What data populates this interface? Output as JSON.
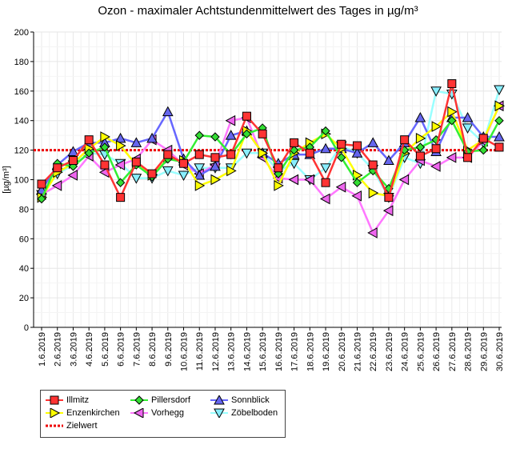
{
  "chart_data": {
    "type": "line",
    "title": "Ozon -  maximaler Achtstundenmittelwert des Tages in µg/m³",
    "xlabel": "",
    "ylabel": "[µg/m³]",
    "ylim": [
      0,
      200
    ],
    "yticks": [
      "0",
      "20",
      "40",
      "60",
      "80",
      "100",
      "120",
      "140",
      "160",
      "180",
      "200"
    ],
    "categories": [
      "1.6.2019",
      "2.6.2019",
      "3.6.2019",
      "4.6.2019",
      "5.6.2019",
      "6.6.2019",
      "7.6.2019",
      "8.6.2019",
      "9.6.2019",
      "10.6.2019",
      "11.6.2019",
      "12.6.2019",
      "13.6.2019",
      "14.6.2019",
      "15.6.2019",
      "16.6.2019",
      "17.6.2019",
      "18.6.2019",
      "19.6.2019",
      "20.6.2019",
      "21.6.2019",
      "22.6.2019",
      "23.6.2019",
      "24.6.2019",
      "25.6.2019",
      "26.6.2019",
      "27.6.2019",
      "28.6.2019",
      "29.6.2019",
      "30.6.2019"
    ],
    "grid": true,
    "legend_placement": "bottom-left",
    "series": [
      {
        "name": "Illmitz",
        "color": "#ff3333",
        "marker": "square",
        "fill": "#ff3333",
        "values": [
          97,
          108,
          113,
          127,
          110,
          88,
          112,
          104,
          117,
          111,
          117,
          115,
          117,
          143,
          131,
          108,
          125,
          118,
          98,
          124,
          123,
          110,
          88,
          127,
          116,
          121,
          165,
          115,
          128,
          122
        ]
      },
      {
        "name": "Enzenkirchen",
        "color": "#ffff00",
        "marker": "tri-right",
        "fill": "#ffff00",
        "values": [
          88,
          105,
          111,
          121,
          129,
          123,
          110,
          103,
          114,
          113,
          96,
          100,
          106,
          133,
          118,
          96,
          118,
          125,
          131,
          121,
          103,
          91,
          89,
          118,
          128,
          136,
          146,
          120,
          127,
          150
        ]
      },
      {
        "name": "Pillersdorf",
        "color": "#33ee33",
        "marker": "diamond",
        "fill": "#33dd33",
        "values": [
          87,
          111,
          109,
          118,
          122,
          98,
          110,
          102,
          114,
          112,
          130,
          129,
          117,
          131,
          135,
          104,
          120,
          122,
          133,
          115,
          98,
          106,
          94,
          120,
          122,
          127,
          140,
          119,
          120,
          140
        ]
      },
      {
        "name": "Vorhegg",
        "color": "#ff77ff",
        "marker": "tri-left",
        "fill": "#ee66ee",
        "values": [
          90,
          96,
          103,
          116,
          105,
          110,
          114,
          127,
          120,
          110,
          104,
          110,
          140,
          142,
          115,
          101,
          100,
          100,
          87,
          95,
          89,
          64,
          79,
          100,
          113,
          109,
          115,
          115,
          126,
          150
        ]
      },
      {
        "name": "Sonnblick",
        "color": "#6666ff",
        "marker": "tri-up",
        "fill": "#6666ee",
        "values": [
          93,
          110,
          119,
          125,
          125,
          128,
          125,
          128,
          146,
          114,
          103,
          109,
          130,
          133,
          118,
          111,
          117,
          117,
          121,
          121,
          118,
          125,
          113,
          125,
          142,
          119,
          142,
          142,
          129,
          129
        ]
      },
      {
        "name": "Zöbelboden",
        "color": "#99ffff",
        "marker": "tri-down",
        "fill": "#88eeff",
        "values": [
          90,
          104,
          110,
          118,
          117,
          111,
          101,
          101,
          106,
          103,
          108,
          108,
          108,
          118,
          118,
          106,
          111,
          100,
          108,
          123,
          118,
          107,
          88,
          115,
          111,
          160,
          158,
          135,
          125,
          161
        ]
      }
    ],
    "target": {
      "name": "Zielwert",
      "value": 120,
      "color": "#ee0000"
    }
  }
}
